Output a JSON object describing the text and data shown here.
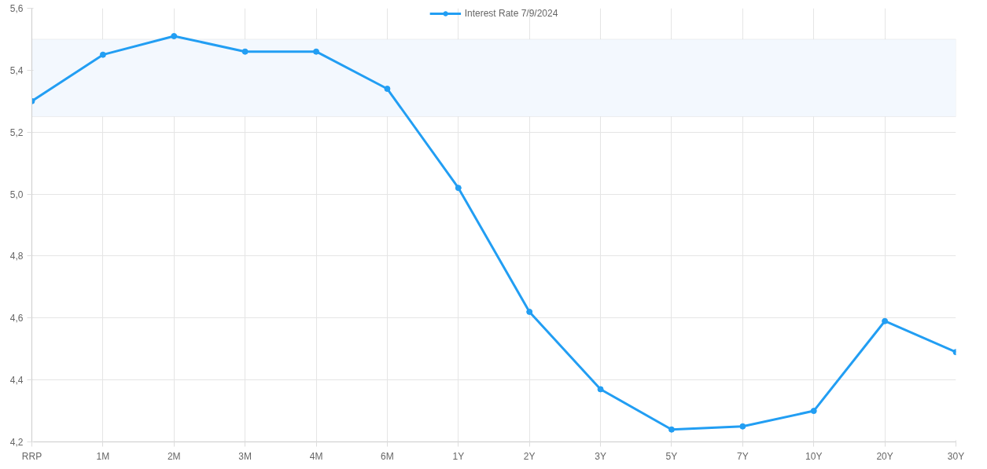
{
  "chart_data": {
    "type": "line",
    "categories": [
      "RRP",
      "1M",
      "2M",
      "3M",
      "4M",
      "6M",
      "1Y",
      "2Y",
      "3Y",
      "5Y",
      "7Y",
      "10Y",
      "20Y",
      "30Y"
    ],
    "series": [
      {
        "name": "Interest Rate 7/9/2024",
        "color": "#229ef3",
        "values": [
          5.3,
          5.45,
          5.51,
          5.46,
          5.46,
          5.34,
          5.02,
          4.62,
          4.37,
          4.24,
          4.25,
          4.3,
          4.59,
          4.49
        ]
      }
    ],
    "ylim": [
      4.2,
      5.6
    ],
    "yticks": [
      {
        "value": 4.2,
        "label": "4,2"
      },
      {
        "value": 4.4,
        "label": "4,4"
      },
      {
        "value": 4.6,
        "label": "4,6"
      },
      {
        "value": 4.8,
        "label": "4,8"
      },
      {
        "value": 5.0,
        "label": "5,0"
      },
      {
        "value": 5.2,
        "label": "5,2"
      },
      {
        "value": 5.4,
        "label": "5,4"
      },
      {
        "value": 5.6,
        "label": "5,6"
      }
    ],
    "bands": [
      {
        "axis": "y",
        "from": 5.25,
        "to": 5.5,
        "color": "#f3f8fe"
      }
    ],
    "grid": true,
    "legend": "top",
    "marker": "circle",
    "line_style": "solid"
  }
}
